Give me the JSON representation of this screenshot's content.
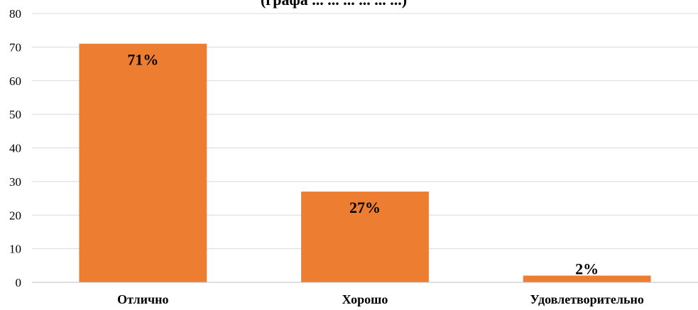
{
  "chart_data": {
    "type": "bar",
    "title": "(графа ... ... ... ... ... ...)",
    "categories": [
      "Отлично",
      "Хорошо",
      "Удовлетворительно"
    ],
    "values": [
      71,
      27,
      2
    ],
    "data_labels": [
      "71%",
      "27%",
      "2%"
    ],
    "yticks": [
      "0",
      "10",
      "20",
      "30",
      "40",
      "50",
      "60",
      "70",
      "80"
    ],
    "ylim": [
      0,
      80
    ],
    "xlabel": "",
    "ylabel": "",
    "grid": true,
    "legend": "none",
    "bar_color": "#ed7d31"
  }
}
